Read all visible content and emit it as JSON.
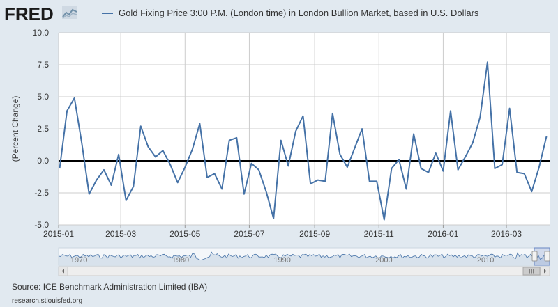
{
  "header": {
    "logo_text": "FRED",
    "legend_label": "Gold Fixing Price 3:00 P.M. (London time) in London Bullion Market, based in U.S. Dollars"
  },
  "colors": {
    "series": "#4572a7",
    "background": "#e1e9f0",
    "plot_background": "#ffffff",
    "grid": "#cccccc",
    "zero_line": "#000000"
  },
  "chart_data": {
    "type": "line",
    "title": "",
    "xlabel": "",
    "ylabel": "(Percent Change)",
    "ylim": [
      -5.0,
      10.0
    ],
    "yticks": [
      "10.0",
      "7.5",
      "5.0",
      "2.5",
      "0.0",
      "-2.5",
      "-5.0"
    ],
    "ytick_values": [
      10.0,
      7.5,
      5.0,
      2.5,
      0.0,
      -2.5,
      -5.0
    ],
    "xticks": [
      "2015-01",
      "2015-03",
      "2015-05",
      "2015-07",
      "2015-09",
      "2015-11",
      "2016-01",
      "2016-03"
    ],
    "xlim": [
      "2015-01-01",
      "2016-04-11"
    ],
    "grid": true,
    "series": [
      {
        "name": "Gold Fixing Price 3:00 P.M. (London time) in London Bullion Market, based in U.S. Dollars",
        "x": [
          "2015-01-02",
          "2015-01-09",
          "2015-01-16",
          "2015-01-23",
          "2015-01-30",
          "2015-02-06",
          "2015-02-13",
          "2015-02-20",
          "2015-02-27",
          "2015-03-06",
          "2015-03-13",
          "2015-03-20",
          "2015-03-27",
          "2015-04-03",
          "2015-04-10",
          "2015-04-17",
          "2015-04-24",
          "2015-05-01",
          "2015-05-08",
          "2015-05-15",
          "2015-05-22",
          "2015-05-29",
          "2015-06-05",
          "2015-06-12",
          "2015-06-19",
          "2015-06-26",
          "2015-07-03",
          "2015-07-10",
          "2015-07-17",
          "2015-07-24",
          "2015-07-31",
          "2015-08-07",
          "2015-08-14",
          "2015-08-21",
          "2015-08-28",
          "2015-09-04",
          "2015-09-11",
          "2015-09-18",
          "2015-09-25",
          "2015-10-02",
          "2015-10-09",
          "2015-10-16",
          "2015-10-23",
          "2015-10-30",
          "2015-11-06",
          "2015-11-13",
          "2015-11-20",
          "2015-11-27",
          "2015-12-04",
          "2015-12-11",
          "2015-12-18",
          "2015-12-25",
          "2016-01-01",
          "2016-01-08",
          "2016-01-15",
          "2016-01-22",
          "2016-01-29",
          "2016-02-05",
          "2016-02-12",
          "2016-02-19",
          "2016-02-26",
          "2016-03-04",
          "2016-03-11",
          "2016-03-18",
          "2016-03-25",
          "2016-04-01",
          "2016-04-08"
        ],
        "values": [
          -0.6,
          3.9,
          4.9,
          1.4,
          -2.6,
          -1.5,
          -0.7,
          -1.9,
          0.5,
          -3.1,
          -2.0,
          2.7,
          1.1,
          0.3,
          0.8,
          -0.3,
          -1.7,
          -0.5,
          0.9,
          2.9,
          -1.3,
          -1.0,
          -2.2,
          1.6,
          1.8,
          -2.6,
          -0.2,
          -0.7,
          -2.4,
          -4.5,
          1.6,
          -0.4,
          2.3,
          3.5,
          -1.8,
          -1.5,
          -1.6,
          3.7,
          0.5,
          -0.5,
          1.0,
          2.5,
          -1.6,
          -1.6,
          -4.6,
          -0.6,
          0.1,
          -2.2,
          2.1,
          -0.6,
          -0.9,
          0.6,
          -0.8,
          3.9,
          -0.7,
          0.3,
          1.4,
          3.4,
          7.7,
          -0.6,
          -0.3,
          4.1,
          -0.9,
          -1.0,
          -2.4,
          -0.5,
          1.9
        ]
      }
    ]
  },
  "navigator": {
    "labels": [
      "1970",
      "1980",
      "1990",
      "2000",
      "2010"
    ]
  },
  "footer": {
    "source": "Source: ICE Benchmark Administration Limited (IBA)",
    "url": "research.stlouisfed.org"
  }
}
